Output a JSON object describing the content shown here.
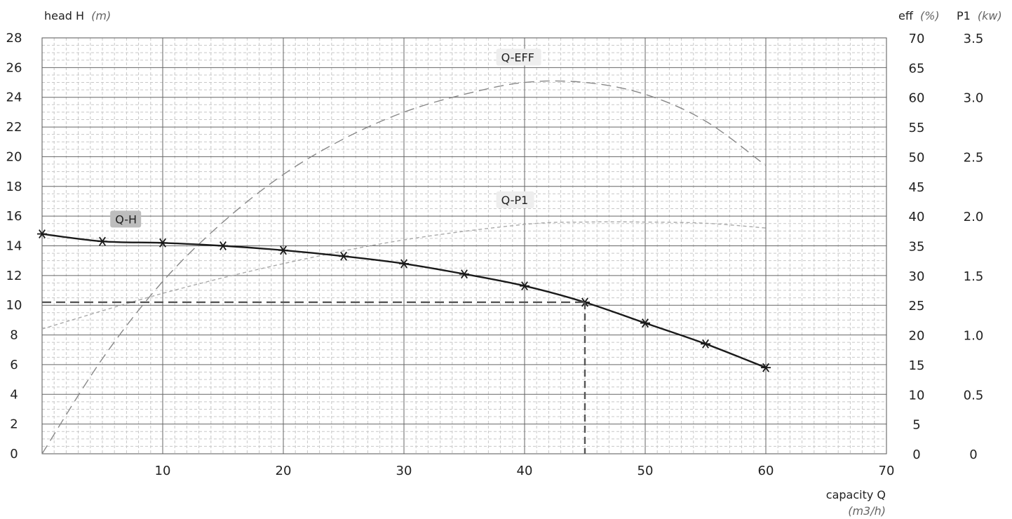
{
  "chart_data": {
    "type": "line",
    "axes": {
      "x": {
        "label": "capacity Q",
        "unit": "(m3/h)",
        "min": 0,
        "max": 70,
        "ticks": [
          10,
          20,
          30,
          40,
          50,
          60,
          70
        ]
      },
      "y_head": {
        "label": "head H",
        "unit": "(m)",
        "min": 0,
        "max": 28,
        "ticks": [
          0,
          2,
          4,
          6,
          8,
          10,
          12,
          14,
          16,
          18,
          20,
          22,
          24,
          26,
          28
        ]
      },
      "y_eff": {
        "label": "eff",
        "unit": "(%)",
        "min": 0,
        "max": 70,
        "ticks": [
          0,
          5,
          10,
          15,
          20,
          25,
          30,
          35,
          40,
          45,
          50,
          55,
          60,
          65,
          70
        ]
      },
      "y_p1": {
        "label": "P1",
        "unit": "(kw)",
        "min": 0,
        "max": 3.5,
        "ticks": [
          "0",
          "0.5",
          "1.0",
          "1.5",
          "2.0",
          "2.5",
          "3.0",
          "3.5"
        ]
      }
    },
    "grid": true,
    "series": [
      {
        "name": "Q-H",
        "axis": "y_head",
        "style": "solid",
        "markers": true,
        "color": "#1a1a1a",
        "x": [
          0,
          5,
          10,
          15,
          20,
          25,
          30,
          35,
          40,
          45,
          50,
          55,
          60
        ],
        "y": [
          14.8,
          14.3,
          14.2,
          14.0,
          13.7,
          13.3,
          12.8,
          12.1,
          11.3,
          10.2,
          8.8,
          7.4,
          5.8
        ]
      },
      {
        "name": "Q-EFF",
        "axis": "y_eff",
        "style": "dashed",
        "markers": false,
        "color": "#888888",
        "x": [
          0,
          5,
          10,
          15,
          20,
          25,
          30,
          35,
          40,
          45,
          50,
          55,
          60
        ],
        "y": [
          0,
          16,
          29,
          39,
          47,
          53,
          57.5,
          60.5,
          62.5,
          62.5,
          60.5,
          56,
          48.5
        ]
      },
      {
        "name": "Q-P1",
        "axis": "y_p1",
        "style": "dashed",
        "markers": false,
        "color": "#aaaaaa",
        "x": [
          0,
          10,
          20,
          30,
          40,
          45,
          50,
          55,
          60
        ],
        "y": [
          1.05,
          1.35,
          1.6,
          1.8,
          1.93,
          1.95,
          1.95,
          1.94,
          1.9
        ]
      }
    ],
    "duty_point": {
      "x": 45,
      "y": 10.2
    },
    "labels": [
      {
        "text": "Q-H",
        "x": 6,
        "y": 15.8,
        "bg": "#bdbdbd"
      },
      {
        "text": "Q-EFF",
        "x": 38,
        "y": 26.7,
        "bg": "#eeeeee"
      },
      {
        "text": "Q-P1",
        "x": 38,
        "y": 17.1,
        "bg": "#eeeeee"
      }
    ]
  }
}
